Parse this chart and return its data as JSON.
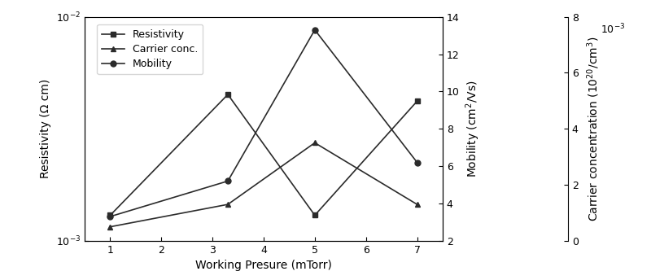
{
  "x": [
    1,
    3.3,
    5,
    7
  ],
  "resistivity": [
    0.0013,
    0.0045,
    0.0013,
    0.0042
  ],
  "mobility": [
    3.3,
    5.2,
    13.3,
    6.2
  ],
  "carrier_conc": [
    0.5,
    1.3,
    3.5,
    1.3
  ],
  "xlabel": "Working Presure (mTorr)",
  "ylabel_left": "Resistivity (Ω cm)",
  "ylabel_right_mobility": "Mobility (cm$^2$/Vs)",
  "ylabel_right_carrier": "Carrier concentration (10$^{20}$/cm$^3$)",
  "legend_resistivity": "Resistivity",
  "legend_carrier": "Carrier conc.",
  "legend_mobility": "Mobility",
  "color": "#2b2b2b",
  "xticks": [
    1,
    2,
    3,
    4,
    5,
    6,
    7
  ],
  "mobility_yticks": [
    2,
    4,
    6,
    8,
    10,
    12,
    14
  ],
  "carrier_yticks": [
    0,
    2,
    4,
    6,
    8
  ],
  "mobility_ylim": [
    2,
    14
  ],
  "carrier_ylim": [
    0,
    8
  ],
  "resistivity_ylim_low": 0.001,
  "resistivity_ylim_high": 0.01
}
